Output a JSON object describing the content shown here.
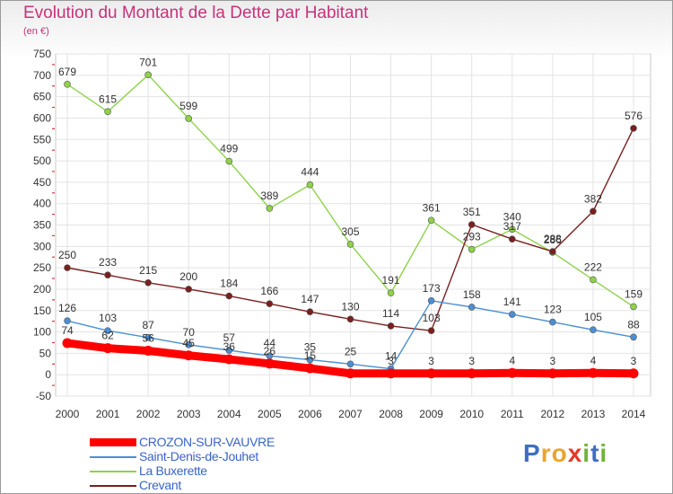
{
  "header": {
    "title": "Evolution du Montant de la Dette par Habitant",
    "subtitle": "(en €)"
  },
  "colors": {
    "title": "#c8317a",
    "legend_text": "#3a63c9",
    "axis_text": "#333333",
    "grid": "#e3e3e3",
    "axis_tick_marks": "#d23a3a"
  },
  "logo": {
    "text": "Proxiti",
    "letter_colors": [
      "#3f6fc2",
      "#e9a52c",
      "#e9a52c",
      "#e23a2b",
      "#6fb43a",
      "#3f6fc2",
      "#6fb43a"
    ]
  },
  "chart_data": {
    "type": "line",
    "title": "Evolution du Montant de la Dette par Habitant",
    "subtitle": "(en €)",
    "xlabel": "",
    "ylabel": "",
    "x": [
      "2000",
      "2001",
      "2002",
      "2003",
      "2004",
      "2005",
      "2006",
      "2007",
      "2008",
      "2009",
      "2010",
      "2011",
      "2012",
      "2013",
      "2014"
    ],
    "ylim": [
      -50,
      750
    ],
    "yticks": [
      -50,
      0,
      50,
      100,
      150,
      200,
      250,
      300,
      350,
      400,
      450,
      500,
      550,
      600,
      650,
      700,
      750
    ],
    "grid": true,
    "legend_position": "bottom-left",
    "series": [
      {
        "name": "CROZON-SUR-VAUVRE",
        "color": "#ff0000",
        "values": [
          74,
          62,
          56,
          45,
          36,
          26,
          15,
          3,
          3,
          3,
          3,
          4,
          3,
          4,
          3
        ],
        "labels": [
          "74",
          "62",
          "56",
          "45",
          "36",
          "26",
          "15",
          "",
          "3",
          "3",
          "3",
          "4",
          "3",
          "4",
          "3"
        ]
      },
      {
        "name": "Saint-Denis-de-Jouhet",
        "color": "#4a8fd4",
        "values": [
          126,
          103,
          87,
          70,
          57,
          44,
          35,
          25,
          14,
          173,
          158,
          141,
          123,
          105,
          88
        ],
        "labels": [
          "126",
          "103",
          "87",
          "70",
          "57",
          "44",
          "35",
          "25",
          "14",
          "173",
          "158",
          "141",
          "123",
          "105",
          "88"
        ]
      },
      {
        "name": "La Buxerette",
        "color": "#8ed24a",
        "values": [
          679,
          615,
          701,
          599,
          499,
          389,
          444,
          305,
          191,
          361,
          293,
          340,
          286,
          222,
          159
        ],
        "labels": [
          "679",
          "615",
          "701",
          "599",
          "499",
          "389",
          "444",
          "305",
          "191",
          "361",
          "293",
          "340",
          "286",
          "222",
          "159"
        ]
      },
      {
        "name": "Crevant",
        "color": "#7a1f1f",
        "values": [
          250,
          233,
          215,
          200,
          184,
          166,
          147,
          130,
          114,
          103,
          351,
          317,
          288,
          382,
          576
        ],
        "labels": [
          "250",
          "233",
          "215",
          "200",
          "184",
          "166",
          "147",
          "130",
          "114",
          "103",
          "351",
          "317",
          "288",
          "382",
          "576"
        ]
      }
    ]
  }
}
